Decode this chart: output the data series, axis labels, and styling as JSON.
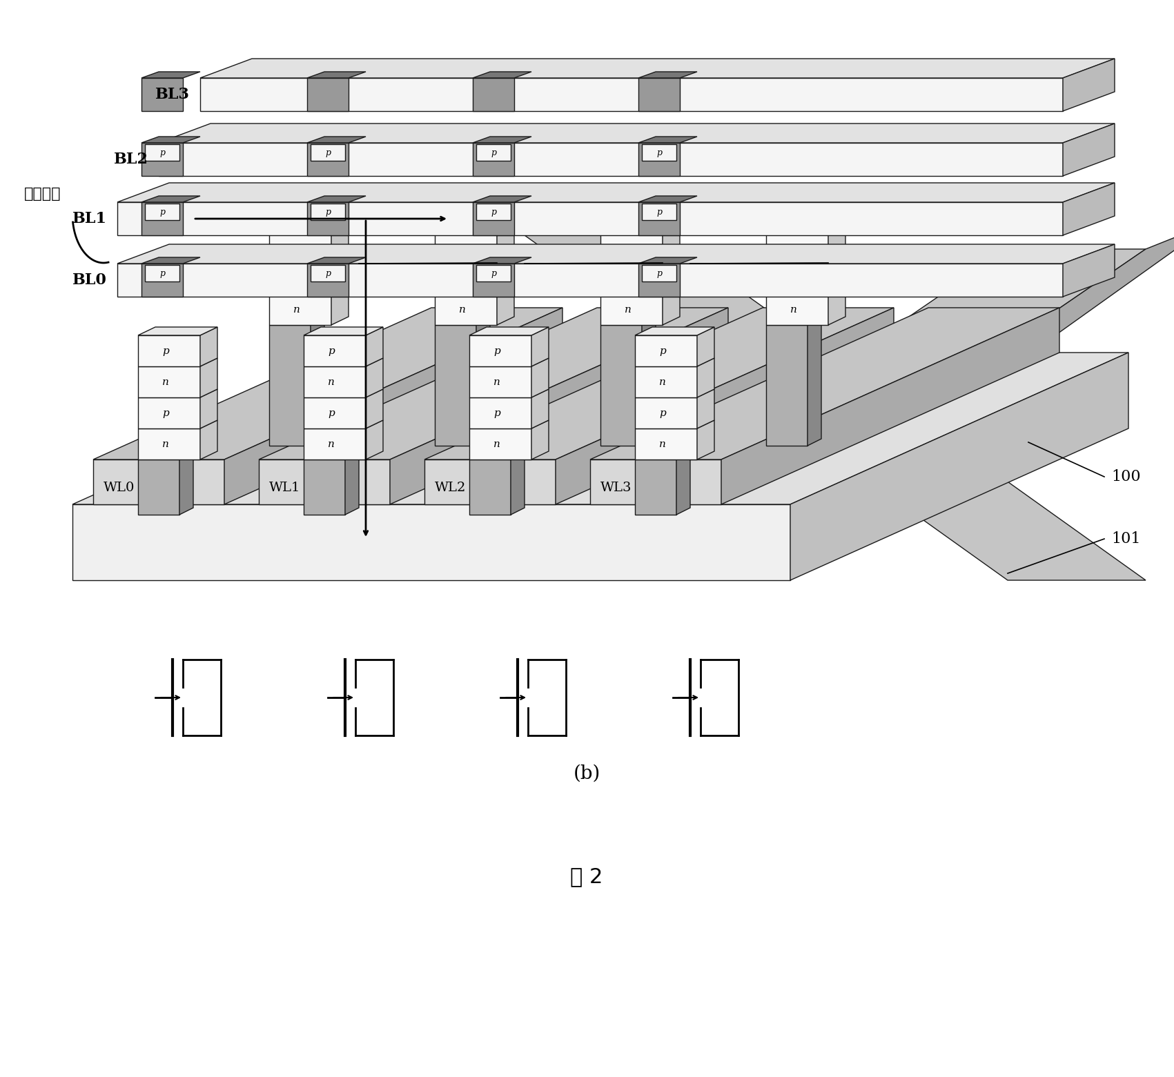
{
  "title_b": "(b)",
  "title_fig": "图 2",
  "bg_color": "#ffffff",
  "ec": "#1a1a1a",
  "lw": 1.0,
  "label_BL": [
    "BL0",
    "BL1",
    "BL2",
    "BL3"
  ],
  "label_WL": [
    "WL0",
    "WL1",
    "WL2",
    "WL3"
  ],
  "label_100": "100",
  "label_101": "101",
  "label_current": "电流方向",
  "face_white": "#f8f8f8",
  "face_light": "#e8e8e8",
  "face_mid": "#c8c8c8",
  "face_dark": "#999999",
  "face_darker": "#777777",
  "face_wl": "#d8d8d8",
  "face_wl_top": "#c5c5c5",
  "face_wl_side": "#aaaaaa",
  "face_base": "#f0f0f0",
  "face_base_top": "#e0e0e0",
  "face_base_side": "#c0c0c0",
  "face_bl": "#f5f5f5",
  "face_bl_top": "#e2e2e2",
  "face_bl_side": "#bbbbbb",
  "cell_face": "#f8f8f8",
  "pillar_face": "#b0b0b0",
  "pillar_side": "#888888",
  "diag_bar_face": "#c5c5c5",
  "diag_bar_side": "#aaaaaa",
  "diag_bar_top": "#dedede"
}
